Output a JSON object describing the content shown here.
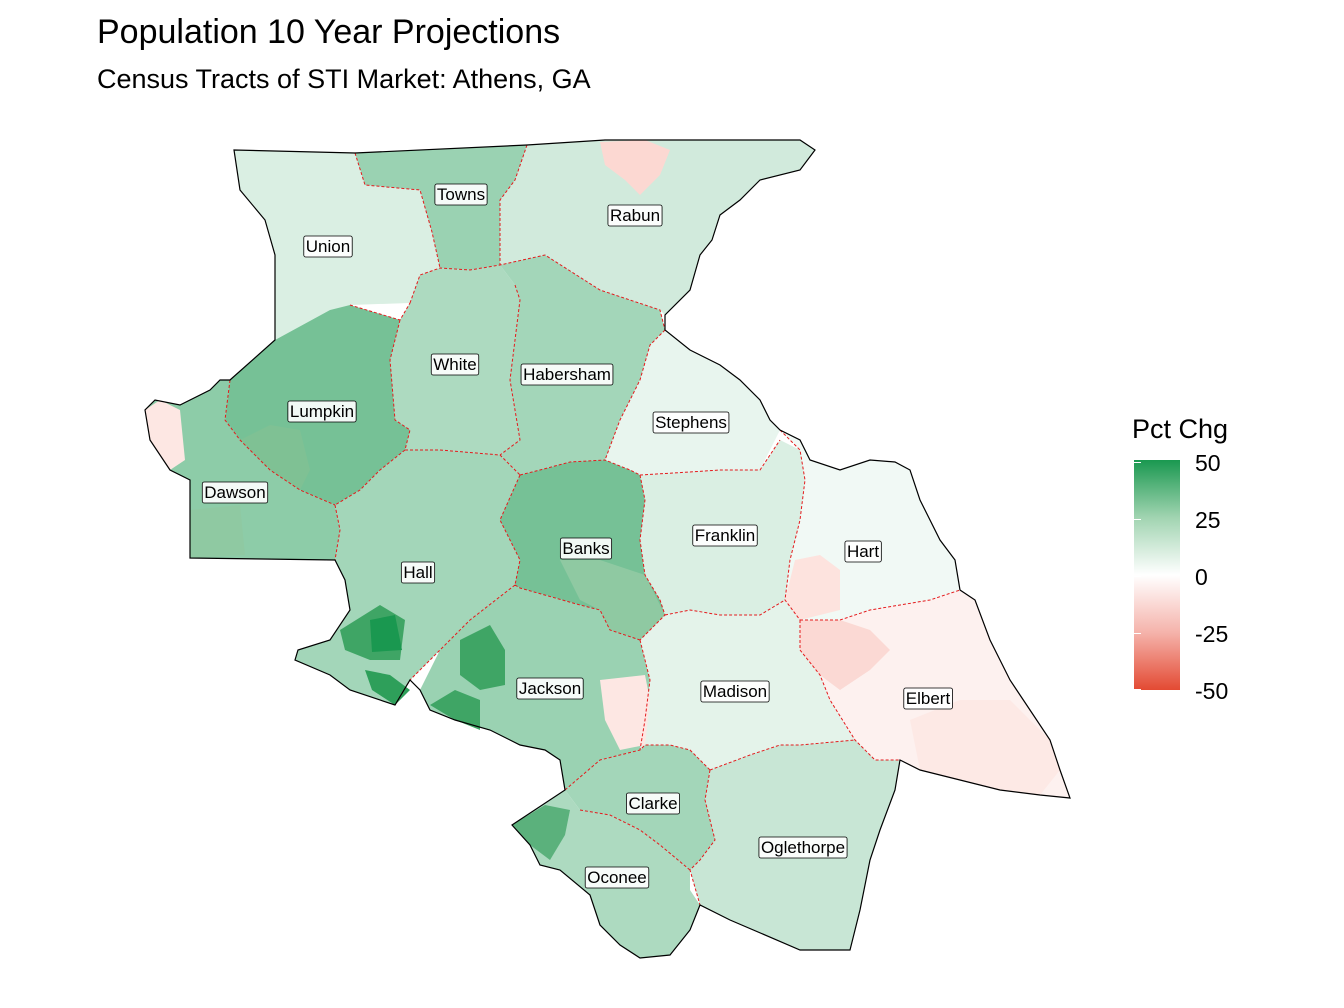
{
  "title": "Population 10 Year Projections",
  "subtitle": "Census Tracts of STI Market: Athens, GA",
  "colors": {
    "high": "#1a9850",
    "mid": "#ffffff",
    "low": "#e34a33",
    "county_border": "#e41a1c",
    "outer_border": "#000000"
  },
  "legend": {
    "title": "Pct Chg",
    "ticks": [
      "50",
      "25",
      "0",
      "-25",
      "-50"
    ],
    "range": [
      -50,
      50
    ]
  },
  "counties": [
    {
      "name": "Towns",
      "pct_chg": 22
    },
    {
      "name": "Rabun",
      "pct_chg": 10
    },
    {
      "name": "Union",
      "pct_chg": 8
    },
    {
      "name": "White",
      "pct_chg": 18
    },
    {
      "name": "Habersham",
      "pct_chg": 20
    },
    {
      "name": "Lumpkin",
      "pct_chg": 30
    },
    {
      "name": "Stephens",
      "pct_chg": 5
    },
    {
      "name": "Dawson",
      "pct_chg": 25
    },
    {
      "name": "Hall",
      "pct_chg": 20
    },
    {
      "name": "Banks",
      "pct_chg": 30
    },
    {
      "name": "Franklin",
      "pct_chg": 8
    },
    {
      "name": "Hart",
      "pct_chg": 3
    },
    {
      "name": "Jackson",
      "pct_chg": 22
    },
    {
      "name": "Madison",
      "pct_chg": 6
    },
    {
      "name": "Elbert",
      "pct_chg": -4
    },
    {
      "name": "Clarke",
      "pct_chg": 20
    },
    {
      "name": "Oglethorpe",
      "pct_chg": 12
    },
    {
      "name": "Oconee",
      "pct_chg": 18
    }
  ]
}
